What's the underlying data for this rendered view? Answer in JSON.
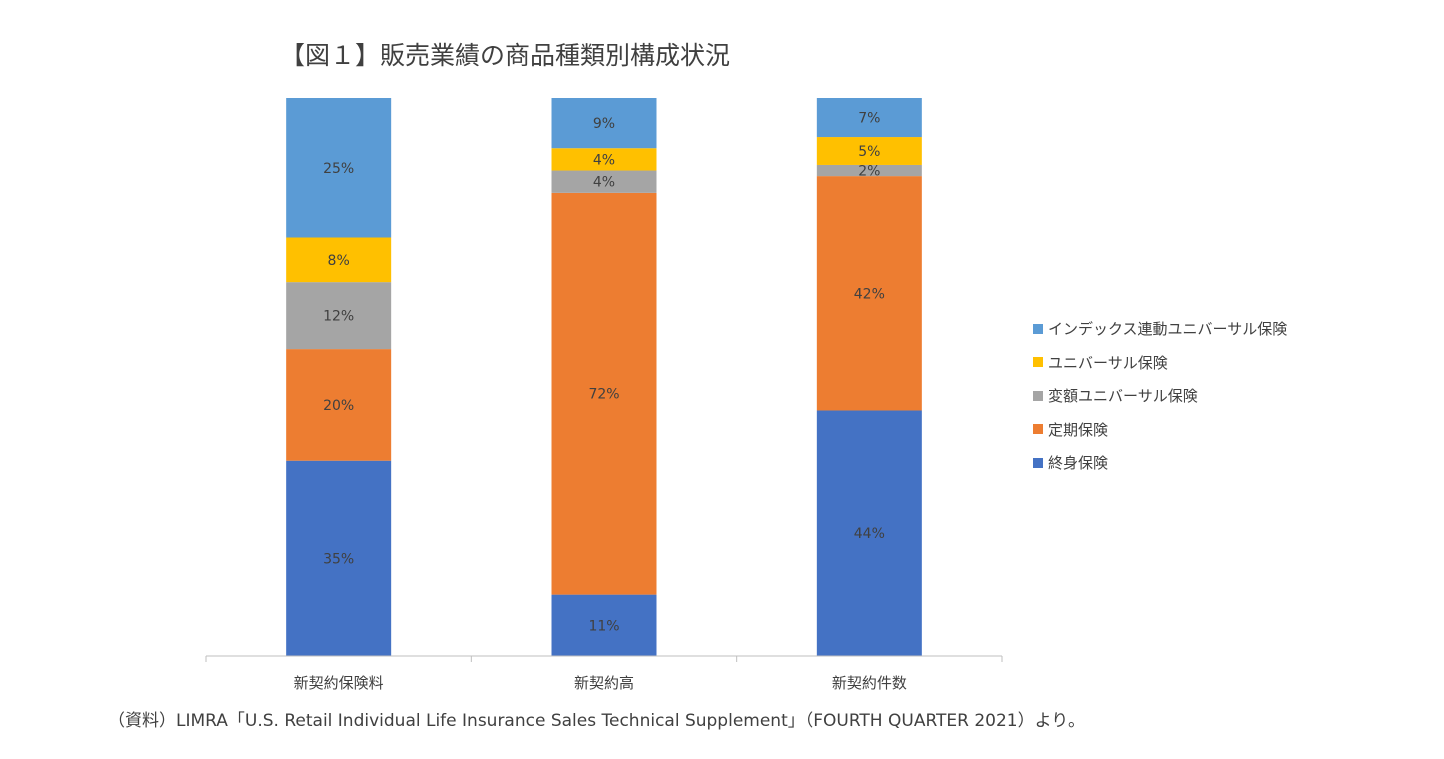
{
  "title": "【図１】販売業績の商品種類別構成状況",
  "source": "（資料）LIMRA「U.S. Retail Individual Life Insurance Sales Technical Supplement」（FOURTH QUARTER 2021）より。",
  "chart_data": {
    "type": "bar",
    "stacked": true,
    "percent_stacked": true,
    "categories": [
      "新契約保険料",
      "新契約高",
      "新契約件数"
    ],
    "series": [
      {
        "name": "終身保険",
        "color": "#4472C4",
        "values": [
          35,
          11,
          44
        ],
        "labels": [
          "35%",
          "11%",
          "44%"
        ]
      },
      {
        "name": "定期保険",
        "color": "#ED7D31",
        "values": [
          20,
          72,
          42
        ],
        "labels": [
          "20%",
          "72%",
          "42%"
        ]
      },
      {
        "name": "変額ユニバーサル保険",
        "color": "#A5A5A5",
        "values": [
          12,
          4,
          2
        ],
        "labels": [
          "12%",
          "4%",
          "2%"
        ]
      },
      {
        "name": "ユニバーサル保険",
        "color": "#FFC000",
        "values": [
          8,
          4,
          5
        ],
        "labels": [
          "8%",
          "4%",
          "5%"
        ]
      },
      {
        "name": "インデックス連動ユニバーサル保険",
        "color": "#5B9BD5",
        "values": [
          25,
          9,
          7
        ],
        "labels": [
          "25%",
          "9%",
          "7%"
        ]
      }
    ],
    "legend": {
      "position": "right",
      "order": [
        "インデックス連動ユニバーサル保険",
        "ユニバーサル保険",
        "変額ユニバーサル保険",
        "定期保険",
        "終身保険"
      ]
    },
    "ylim": [
      0,
      100
    ]
  }
}
